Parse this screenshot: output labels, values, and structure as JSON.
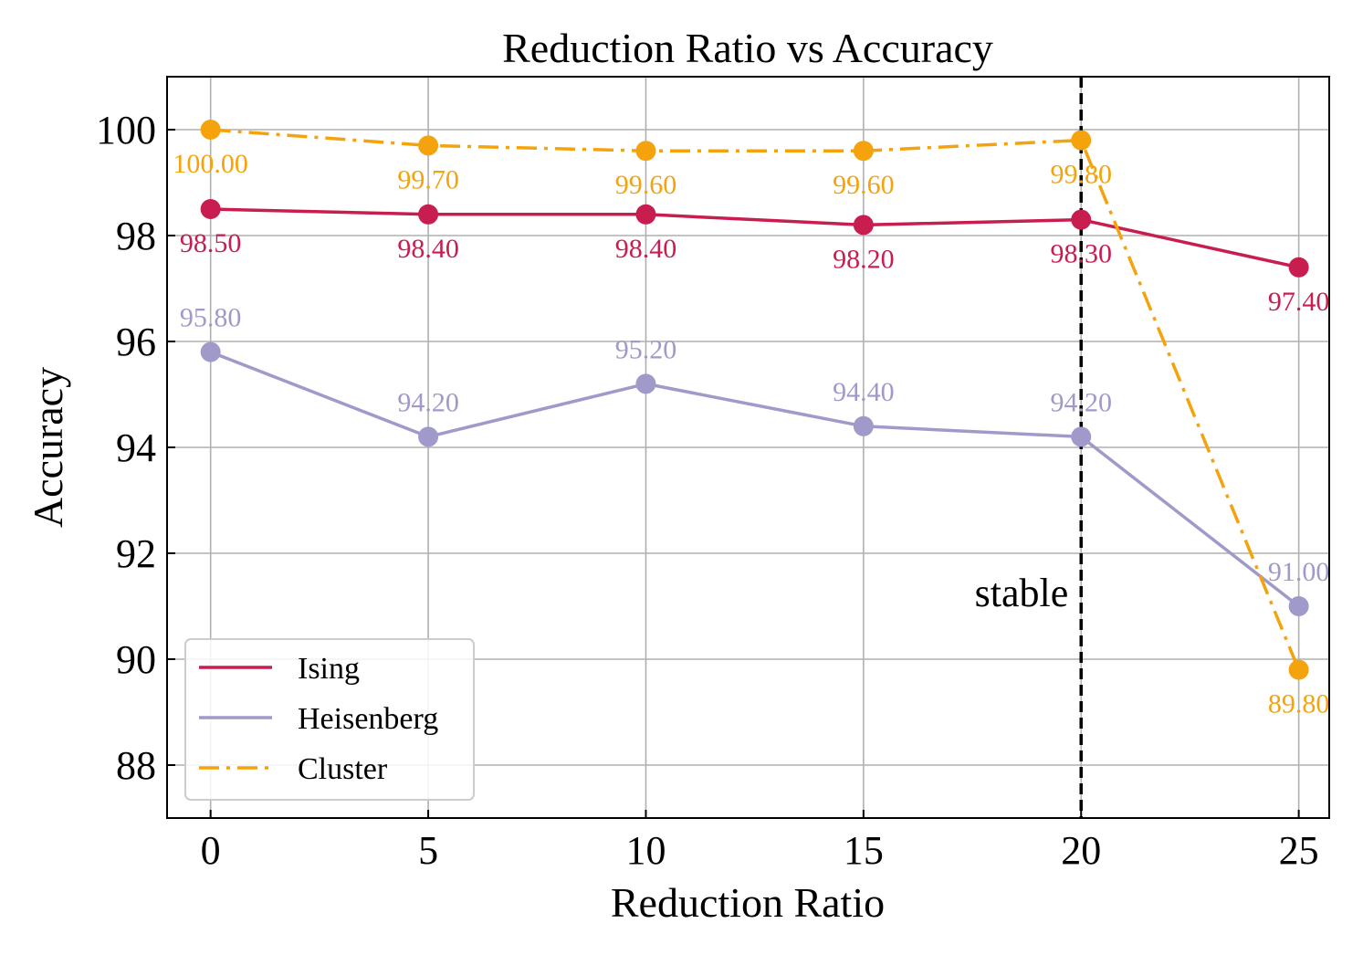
{
  "chart_data": {
    "type": "line",
    "title": "Reduction Ratio vs Accuracy",
    "xlabel": "Reduction Ratio",
    "ylabel": "Accuracy",
    "x": [
      0,
      5,
      10,
      15,
      20,
      25
    ],
    "xlim": [
      -1,
      25.7
    ],
    "ylim": [
      87,
      101
    ],
    "xticks": [
      0,
      5,
      10,
      15,
      20,
      25
    ],
    "yticks": [
      88,
      90,
      92,
      94,
      96,
      98,
      100
    ],
    "grid": true,
    "legend_position": "lower-left",
    "series": [
      {
        "name": "Ising",
        "color": "#c81d4f",
        "style": "solid",
        "label_pos": "below",
        "values": [
          98.5,
          98.4,
          98.4,
          98.2,
          98.3,
          97.4
        ],
        "labels": [
          "98.50",
          "98.40",
          "98.40",
          "98.20",
          "98.30",
          "97.40"
        ]
      },
      {
        "name": "Heisenberg",
        "color": "#9f9ac9",
        "style": "solid",
        "label_pos": "above",
        "values": [
          95.8,
          94.2,
          95.2,
          94.4,
          94.2,
          91.0
        ],
        "labels": [
          "95.80",
          "94.20",
          "95.20",
          "94.40",
          "94.20",
          "91.00"
        ]
      },
      {
        "name": "Cluster",
        "color": "#f5a30c",
        "style": "dashdot",
        "label_pos": "below",
        "values": [
          100.0,
          99.7,
          99.6,
          99.6,
          99.8,
          89.8
        ],
        "labels": [
          "100.00",
          "99.70",
          "99.60",
          "99.60",
          "99.80",
          "89.80"
        ]
      }
    ],
    "vline": {
      "x": 20,
      "label": "stable",
      "color": "#000000"
    }
  }
}
